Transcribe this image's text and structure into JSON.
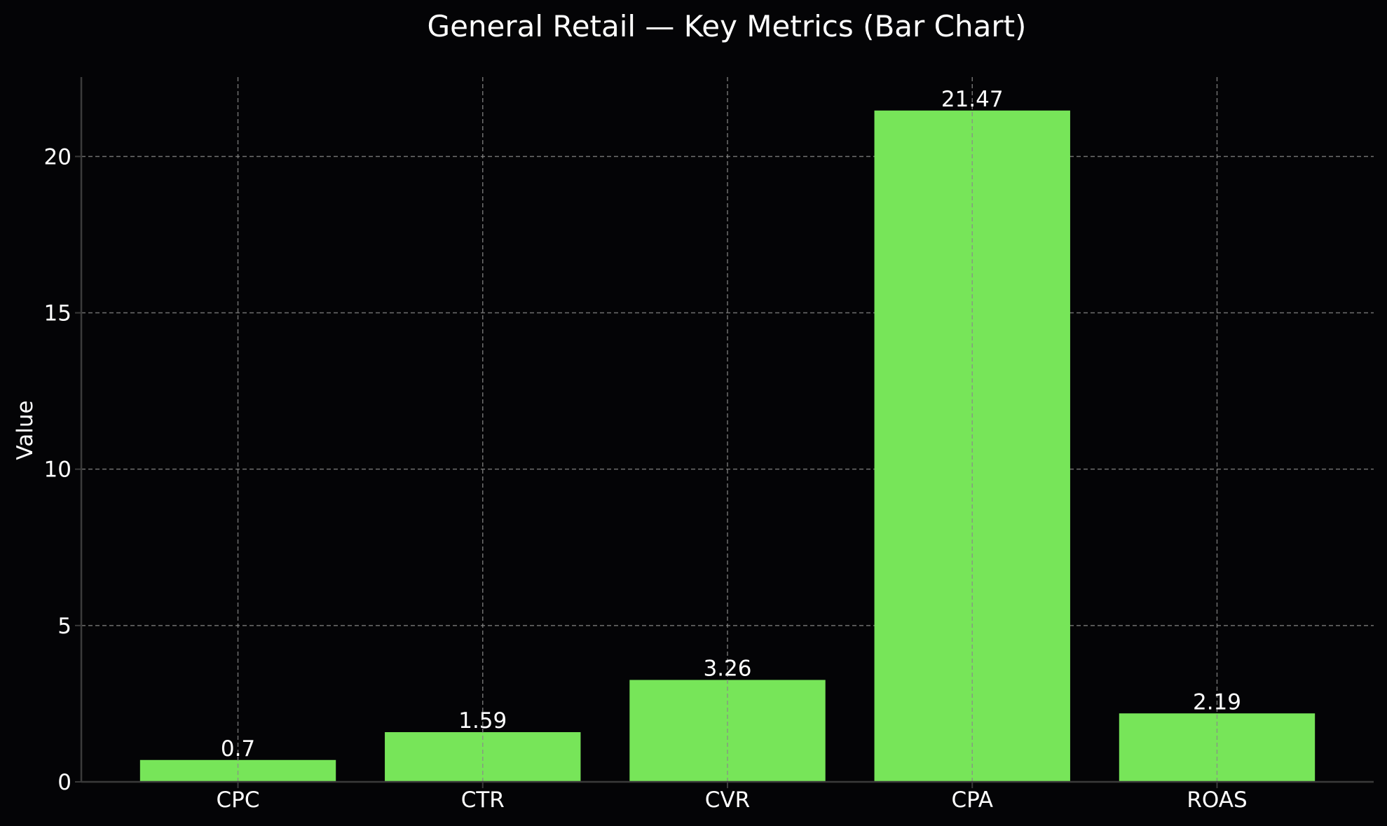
{
  "chart_data": {
    "type": "bar",
    "title": "General Retail — Key Metrics (Bar Chart)",
    "xlabel": "",
    "ylabel": "Value",
    "categories": [
      "CPC",
      "CTR",
      "CVR",
      "CPA",
      "ROAS"
    ],
    "values": [
      0.7,
      1.59,
      3.26,
      21.47,
      2.19
    ],
    "value_labels": [
      "0.7",
      "1.59",
      "3.26",
      "21.47",
      "2.19"
    ],
    "ylim": [
      0,
      22.54
    ],
    "yticks": [
      0,
      5,
      10,
      15,
      20
    ],
    "ytick_labels": [
      "0",
      "5",
      "10",
      "15",
      "20"
    ],
    "grid": true,
    "legend": "none",
    "colors": {
      "background": "#040406",
      "bar": "#77e559",
      "text": "#ffffff",
      "grid": "#8a8a8a",
      "axis": "#3a3a3a"
    }
  }
}
